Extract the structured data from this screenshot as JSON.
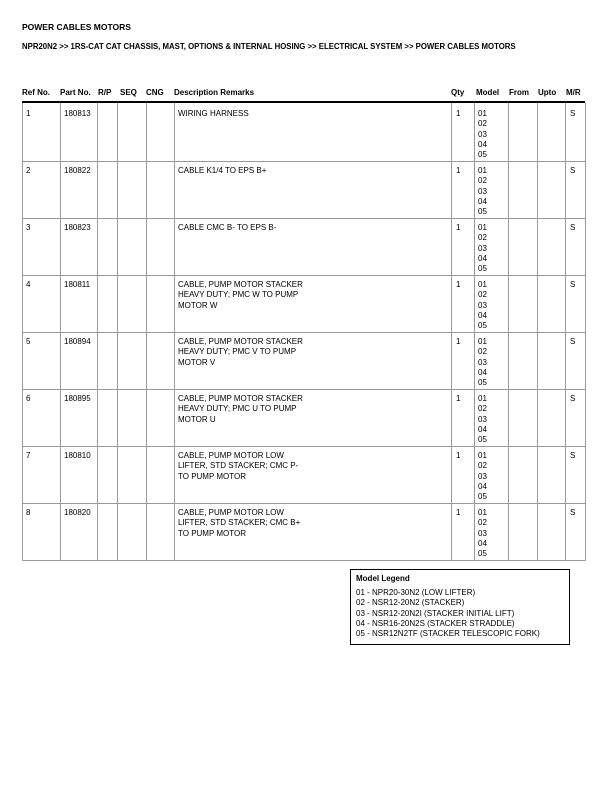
{
  "header": {
    "title": "POWER CABLES MOTORS",
    "breadcrumb": "NPR20N2 >> 1RS-CAT CAT CHASSIS, MAST, OPTIONS & INTERNAL HOSING >> ELECTRICAL SYSTEM >> POWER CABLES MOTORS"
  },
  "table": {
    "columns": [
      "Ref No.",
      "Part No.",
      "R/P",
      "SEQ",
      "CNG",
      "Description Remarks",
      "Qty",
      "Model",
      "From",
      "Upto",
      "M/R"
    ],
    "rows": [
      {
        "ref": "1",
        "part": "180813",
        "description": [
          "WIRING HARNESS"
        ],
        "qty": "1",
        "models": [
          "01",
          "02",
          "03",
          "04",
          "05"
        ],
        "mr": "S"
      },
      {
        "ref": "2",
        "part": "180822",
        "description": [
          "CABLE K1/4 TO EPS B+"
        ],
        "qty": "1",
        "models": [
          "01",
          "02",
          "03",
          "04",
          "05"
        ],
        "mr": "S"
      },
      {
        "ref": "3",
        "part": "180823",
        "description": [
          "CABLE CMC B- TO EPS B-"
        ],
        "qty": "1",
        "models": [
          "01",
          "02",
          "03",
          "04",
          "05"
        ],
        "mr": "S"
      },
      {
        "ref": "4",
        "part": "180811",
        "description": [
          "CABLE, PUMP MOTOR STACKER",
          "HEAVY DUTY; PMC W TO PUMP",
          "MOTOR W"
        ],
        "qty": "1",
        "models": [
          "01",
          "02",
          "03",
          "04",
          "05"
        ],
        "mr": "S"
      },
      {
        "ref": "5",
        "part": "180894",
        "description": [
          "CABLE, PUMP MOTOR STACKER",
          "HEAVY DUTY; PMC V TO PUMP",
          "MOTOR V"
        ],
        "qty": "1",
        "models": [
          "01",
          "02",
          "03",
          "04",
          "05"
        ],
        "mr": "S"
      },
      {
        "ref": "6",
        "part": "180895",
        "description": [
          "CABLE, PUMP MOTOR STACKER",
          "HEAVY DUTY; PMC U TO PUMP",
          "MOTOR U"
        ],
        "qty": "1",
        "models": [
          "01",
          "02",
          "03",
          "04",
          "05"
        ],
        "mr": "S"
      },
      {
        "ref": "7",
        "part": "180810",
        "description": [
          "CABLE, PUMP MOTOR LOW",
          "LIFTER, STD STACKER; CMC P-",
          "TO PUMP MOTOR"
        ],
        "qty": "1",
        "models": [
          "01",
          "02",
          "03",
          "04",
          "05"
        ],
        "mr": "S"
      },
      {
        "ref": "8",
        "part": "180820",
        "description": [
          "CABLE, PUMP MOTOR LOW",
          "LIFTER, STD STACKER; CMC B+",
          "TO PUMP MOTOR"
        ],
        "qty": "1",
        "models": [
          "01",
          "02",
          "03",
          "04",
          "05"
        ],
        "mr": "S"
      }
    ]
  },
  "legend": {
    "title": "Model Legend",
    "items": [
      "01 - NPR20-30N2 (LOW LIFTER)",
      "02 - NSR12-20N2 (STACKER)",
      "03 - NSR12-20N2I (STACKER INITIAL LIFT)",
      "04 - NSR16-20N2S (STACKER STRADDLE)",
      "05 - NSR12N2TF (STACKER TELESCOPIC FORK)"
    ]
  }
}
